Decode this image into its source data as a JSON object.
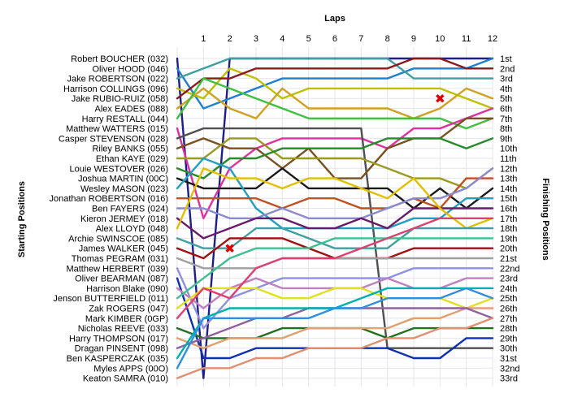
{
  "chart_data": {
    "type": "line",
    "title": "",
    "xlabel": "Laps",
    "ylabel_left": "Starting Positions",
    "ylabel_right": "Finishing Positions",
    "laps": [
      "1",
      "2",
      "3",
      "4",
      "5",
      "6",
      "7",
      "8",
      "9",
      "10",
      "11",
      "12"
    ],
    "drivers": [
      "Robert BOUCHER (032)",
      "Oliver HOOD (046)",
      "Jake ROBERTSON (022)",
      "Harrison COLLINGS (096)",
      "Jake RUBIO-RUIZ (058)",
      "Alex EADES (088)",
      "Harry RESTALL (044)",
      "Matthew WATTERS (015)",
      "Casper STEVENSON (028)",
      "Riley BANKS (055)",
      "Ethan KAYE (029)",
      "Louie WESTOVER (026)",
      "Joshua MARTIN (00C)",
      "Wesley MASON (023)",
      "Jonathan ROBERTSON (016)",
      "Ben FAYERS (024)",
      "Kieron JERMEY (018)",
      "Alex LLOYD (048)",
      "Archie SWINSCOE (085)",
      "James WALKER (045)",
      "Thomas PEGRAM (031)",
      "Matthew HERBERT (039)",
      "Oliver BEARMAN (087)",
      "Harrison Blake (090)",
      "Jenson BUTTERFIELD (011)",
      "Zak ROGERS (047)",
      "Mark KIMBER (0GP)",
      "Nicholas REEVE (033)",
      "Harry THOMPSON (017)",
      "Dragan PINSENT (098)",
      "Ben KASPERCZAK (035)",
      "Myles APPS (00O)",
      "Keaton SAMRA (010)"
    ],
    "finishing_labels": [
      "1st",
      "2nd",
      "3rd",
      "4th",
      "5th",
      "6th",
      "7th",
      "8th",
      "9th",
      "10th",
      "11th",
      "12th",
      "13th",
      "14th",
      "15th",
      "16th",
      "17th",
      "18th",
      "19th",
      "20th",
      "21st",
      "22nd",
      "23rd",
      "24th",
      "25th",
      "26th",
      "27th",
      "28th",
      "29th",
      "30th",
      "31st",
      "32nd",
      "33rd"
    ],
    "y_range": [
      1,
      33
    ],
    "grid": true,
    "series": [
      {
        "color": "#1f1f8c",
        "positions": [
          1,
          33,
          1,
          1,
          1,
          1,
          1,
          1,
          1,
          1,
          1,
          1,
          1
        ]
      },
      {
        "color": "#1f7fd0",
        "positions": [
          2,
          6,
          5,
          4,
          3,
          3,
          3,
          3,
          3,
          2,
          2,
          2,
          1
        ]
      },
      {
        "color": "#3fa0a0",
        "positions": [
          3,
          2,
          1,
          1,
          1,
          1,
          1,
          1,
          1,
          3,
          3,
          3,
          3
        ]
      },
      {
        "color": "#c0c000",
        "positions": [
          4,
          5,
          2,
          3,
          5,
          4,
          4,
          4,
          4,
          4,
          4,
          5,
          6
        ]
      },
      {
        "color": "#8b1a1a",
        "positions": [
          5,
          3,
          3,
          2,
          2,
          2,
          2,
          2,
          2,
          1,
          1,
          2,
          2
        ]
      },
      {
        "color": "#d0a020",
        "positions": [
          6,
          4,
          6,
          7,
          4,
          6,
          6,
          6,
          6,
          7,
          6,
          4,
          5
        ]
      },
      {
        "color": "#40c040",
        "positions": [
          7,
          3,
          4,
          5,
          6,
          7,
          7,
          7,
          7,
          7,
          7,
          8,
          7
        ]
      },
      {
        "color": "#e030a0",
        "positions": [
          8,
          17,
          12,
          10,
          9,
          9,
          9,
          9,
          10,
          8,
          8,
          7,
          6
        ]
      },
      {
        "color": "#505050",
        "positions": [
          9,
          8,
          8,
          8,
          8,
          8,
          8,
          8,
          30,
          30,
          30,
          30,
          30
        ]
      },
      {
        "color": "#7a5020",
        "positions": [
          10,
          9,
          10,
          10,
          12,
          10,
          13,
          13,
          10,
          9,
          9,
          7,
          7
        ]
      },
      {
        "color": "#9a9a20",
        "positions": [
          11,
          11,
          9,
          9,
          11,
          11,
          11,
          11,
          12,
          13,
          13,
          14,
          12
        ]
      },
      {
        "color": "#2a8a2a",
        "positions": [
          12,
          13,
          11,
          11,
          10,
          10,
          10,
          10,
          9,
          9,
          9,
          10,
          9
        ]
      },
      {
        "color": "#1a1a1a",
        "positions": [
          13,
          14,
          14,
          14,
          12,
          14,
          14,
          14,
          14,
          16,
          14,
          16,
          14
        ]
      },
      {
        "color": "#20a0c0",
        "positions": [
          14,
          11,
          12,
          16,
          18,
          18,
          18,
          18,
          18,
          17,
          17,
          15,
          15
        ]
      },
      {
        "color": "#c05020",
        "positions": [
          15,
          15,
          15,
          15,
          16,
          15,
          15,
          16,
          16,
          15,
          16,
          13,
          13
        ]
      },
      {
        "color": "#8a8ad0",
        "positions": [
          16,
          16,
          17,
          17,
          16,
          17,
          17,
          17,
          16,
          15,
          15,
          14,
          12
        ]
      },
      {
        "color": "#6a1a6a",
        "positions": [
          17,
          19,
          18,
          17,
          17,
          18,
          18,
          17,
          18,
          16,
          16,
          16,
          16
        ]
      },
      {
        "color": "#e0c000",
        "positions": [
          18,
          12,
          13,
          13,
          14,
          13,
          13,
          14,
          15,
          13,
          16,
          18,
          17
        ]
      },
      {
        "color": "#40a0a0",
        "positions": [
          19,
          20,
          20,
          18,
          18,
          19,
          20,
          20,
          20,
          18,
          18,
          18,
          18
        ]
      },
      {
        "color": "#a01010",
        "positions": [
          20,
          21,
          19,
          19,
          19,
          20,
          21,
          21,
          21,
          20,
          20,
          20,
          20
        ]
      },
      {
        "color": "#a0a0a0",
        "positions": [
          21,
          22,
          22,
          22,
          21,
          21,
          21,
          21,
          21,
          21,
          21,
          21,
          21
        ]
      },
      {
        "color": "#9090e0",
        "positions": [
          22,
          28,
          25,
          24,
          23,
          23,
          23,
          23,
          23,
          22,
          22,
          22,
          22
        ]
      },
      {
        "color": "#1030b0",
        "positions": [
          23,
          31,
          31,
          30,
          30,
          30,
          30,
          30,
          30,
          31,
          31,
          29,
          29
        ]
      },
      {
        "color": "#c080c0",
        "positions": [
          24,
          26,
          24,
          23,
          24,
          24,
          24,
          24,
          23,
          24,
          24,
          23,
          23
        ]
      },
      {
        "color": "#40c090",
        "positions": [
          25,
          23,
          21,
          20,
          20,
          20,
          19,
          19,
          19,
          19,
          19,
          19,
          19
        ]
      },
      {
        "color": "#e0e020",
        "positions": [
          26,
          24,
          24,
          24,
          25,
          25,
          24,
          24,
          25,
          25,
          25,
          26,
          25
        ]
      },
      {
        "color": "#e04070",
        "positions": [
          27,
          24,
          25,
          22,
          21,
          21,
          21,
          20,
          19,
          18,
          17,
          17,
          17
        ]
      },
      {
        "color": "#207020",
        "positions": [
          28,
          29,
          29,
          29,
          28,
          28,
          28,
          28,
          29,
          28,
          28,
          28,
          28
        ]
      },
      {
        "color": "#e0a070",
        "positions": [
          29,
          30,
          29,
          29,
          29,
          28,
          28,
          28,
          28,
          27,
          27,
          26,
          26
        ]
      },
      {
        "color": "#9060a0",
        "positions": [
          30,
          29,
          28,
          27,
          27,
          26,
          26,
          26,
          26,
          26,
          26,
          26,
          27
        ]
      },
      {
        "color": "#00b0b0",
        "positions": [
          31,
          27,
          26,
          26,
          26,
          26,
          26,
          25,
          24,
          24,
          24,
          24,
          24
        ]
      },
      {
        "color": "#3090e0",
        "positions": [
          32,
          27,
          27,
          27,
          27,
          27,
          26,
          26,
          25,
          25,
          25,
          24,
          25
        ]
      },
      {
        "color": "#e09070",
        "positions": [
          33,
          32,
          32,
          31,
          31,
          30,
          30,
          30,
          29,
          29,
          28,
          28,
          27
        ]
      }
    ],
    "retirements": [
      {
        "lap": 10,
        "position": 5
      },
      {
        "lap": 2,
        "position": 20
      }
    ]
  }
}
